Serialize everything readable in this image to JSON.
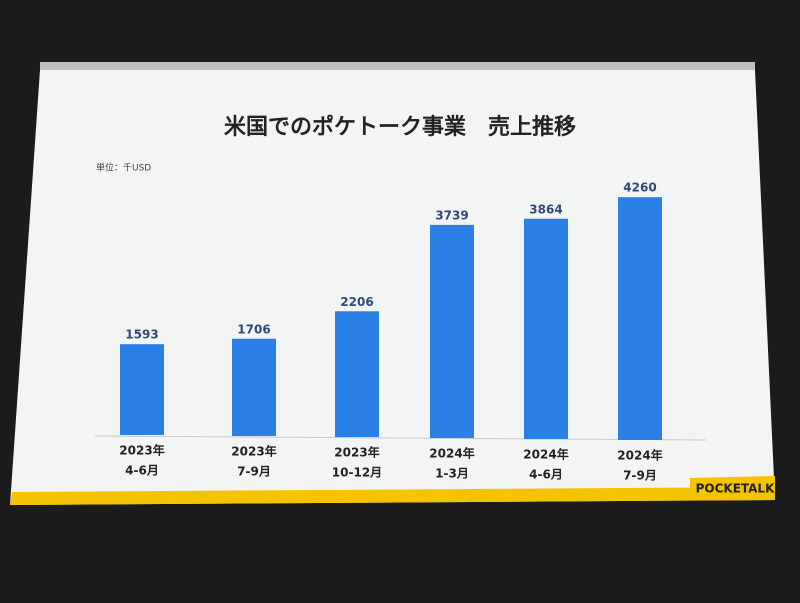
{
  "chart_data": {
    "type": "bar",
    "title": "米国でのポケトーク事業　売上推移",
    "unit_label": "単位：千USD",
    "categories": [
      [
        "2023年",
        "4-6月"
      ],
      [
        "2023年",
        "7-9月"
      ],
      [
        "2023年",
        "10-12月"
      ],
      [
        "2024年",
        "1-3月"
      ],
      [
        "2024年",
        "4-6月"
      ],
      [
        "2024年",
        "7-9月"
      ]
    ],
    "values": [
      1593,
      1706,
      2206,
      3739,
      3864,
      4260
    ],
    "color": "#2a80e6",
    "value_label_color": "#2f4a78"
  },
  "logo": "POCKETALK"
}
